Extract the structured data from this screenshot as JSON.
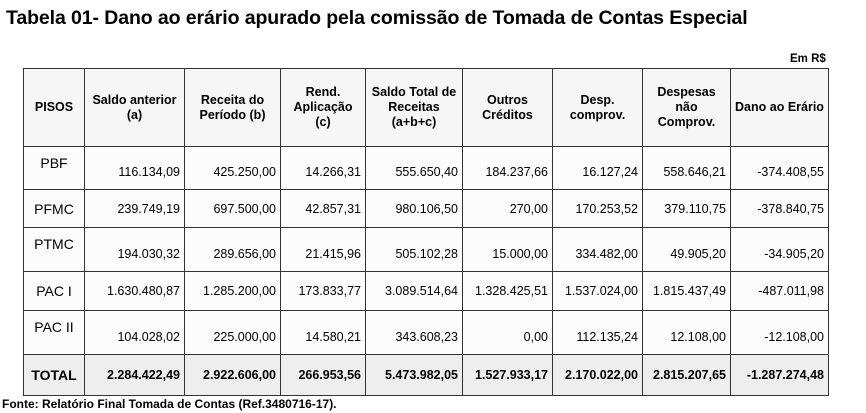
{
  "title": "Tabela 01- Dano ao erário apurado pela comissão de Tomada de Contas Especial",
  "unit": "Em R$",
  "headers": [
    "PISOS",
    "Saldo anterior (a)",
    "Receita do Período (b)",
    "Rend. Aplicação (c)",
    "Saldo Total de Receitas (a+b+c)",
    "Outros Créditos",
    "Desp. comprov.",
    "Despesas não Comprov.",
    "Dano ao Erário"
  ],
  "rows": [
    [
      "PBF",
      "116.134,09",
      "425.250,00",
      "14.266,31",
      "555.650,40",
      "184.237,66",
      "16.127,24",
      "558.646,21",
      "-374.408,55"
    ],
    [
      "PFMC",
      "239.749,19",
      "697.500,00",
      "42.857,31",
      "980.106,50",
      "270,00",
      "170.253,52",
      "379.110,75",
      "-378.840,75"
    ],
    [
      "PTMC",
      "194.030,32",
      "289.656,00",
      "21.415,96",
      "505.102,28",
      "15.000,00",
      "334.482,00",
      "49.905,20",
      "-34.905,20"
    ],
    [
      "PAC I",
      "1.630.480,87",
      "1.285.200,00",
      "173.833,77",
      "3.089.514,64",
      "1.328.425,51",
      "1.537.024,00",
      "1.815.437,49",
      "-487.011,98"
    ],
    [
      "PAC II",
      "104.028,02",
      "225.000,00",
      "14.580,21",
      "343.608,23",
      "0,00",
      "112.135,24",
      "12.108,00",
      "-12.108,00"
    ]
  ],
  "total": [
    "TOTAL",
    "2.284.422,49",
    "2.922.606,00",
    "266.953,56",
    "5.473.982,05",
    "1.527.933,17",
    "2.170.022,00",
    "2.815.207,65",
    "-1.287.274,48"
  ],
  "source": "Fonte: Relatório Final Tomada de Contas (Ref.3480716-17)."
}
